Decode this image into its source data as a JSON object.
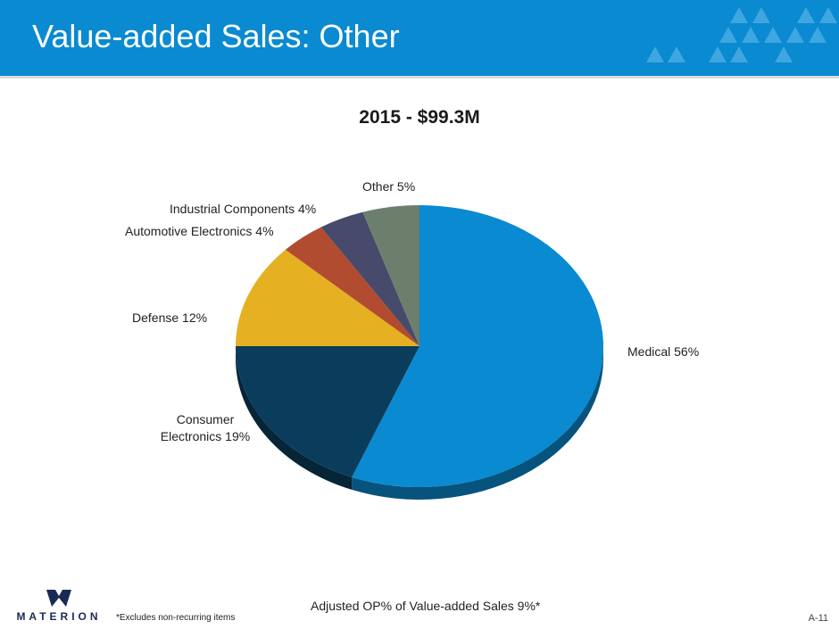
{
  "slide": {
    "title": "Value-added Sales:  Other",
    "footnote_op": "Adjusted OP% of Value-added Sales 9%*",
    "footnote_excludes": "*Excludes non-recurring items",
    "page_number": "A-11",
    "logo_text": "MATERION"
  },
  "colors": {
    "header": "#0a8ad0",
    "triangles": "#3ea6e0",
    "brand_navy": "#1b2a55"
  },
  "chart_data": {
    "type": "pie",
    "title": "2015 - $99.3M",
    "total": "$99.3M",
    "slices": [
      {
        "name": "Medical",
        "value": 56,
        "label": "Medical 56%",
        "color": "#0a8ad0"
      },
      {
        "name": "Consumer Electronics",
        "value": 19,
        "label": "Consumer\nElectronics 19%",
        "color": "#0a3d5c"
      },
      {
        "name": "Defense",
        "value": 12,
        "label": "Defense 12%",
        "color": "#e6b023"
      },
      {
        "name": "Automotive Electronics",
        "value": 4,
        "label": "Automotive Electronics 4%",
        "color": "#b24c30"
      },
      {
        "name": "Industrial Components",
        "value": 4,
        "label": "Industrial Components 4%",
        "color": "#474a6b"
      },
      {
        "name": "Other",
        "value": 5,
        "label": "Other 5%",
        "color": "#6c7e6c"
      }
    ]
  }
}
